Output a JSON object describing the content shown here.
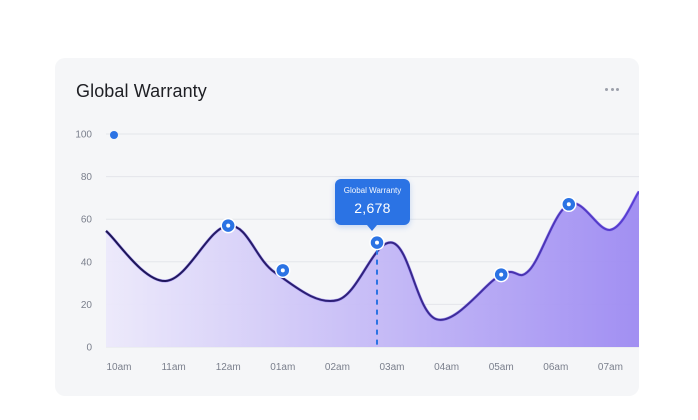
{
  "card": {
    "title": "Global Warranty",
    "menu_icon": "more-horizontal-icon"
  },
  "tooltip": {
    "label": "Global Warranty",
    "value": "2,678"
  },
  "colors": {
    "line": "#5a3fd6",
    "marker": "#2b73e4",
    "area_from": "#e7e4fb",
    "area_to": "#9d8af2",
    "grid": "#e3e5ea",
    "legend_dot": "#2b73e4"
  },
  "chart_data": {
    "type": "area",
    "title": "Global Warranty",
    "x": [
      "10am",
      "11am",
      "12am",
      "01am",
      "02am",
      "03am",
      "04am",
      "05am",
      "06am",
      "07am"
    ],
    "ylim": [
      0,
      100
    ],
    "yticks": [
      0,
      20,
      40,
      60,
      80,
      100
    ],
    "grid": true,
    "highlight_x": "03am",
    "markers": [
      {
        "x": "12am",
        "y": 57
      },
      {
        "x": "01am",
        "y": 36
      },
      {
        "x": "03am",
        "y": 49
      },
      {
        "x": "05am",
        "y": 34
      },
      {
        "x": "06am",
        "y": 67
      }
    ]
  }
}
